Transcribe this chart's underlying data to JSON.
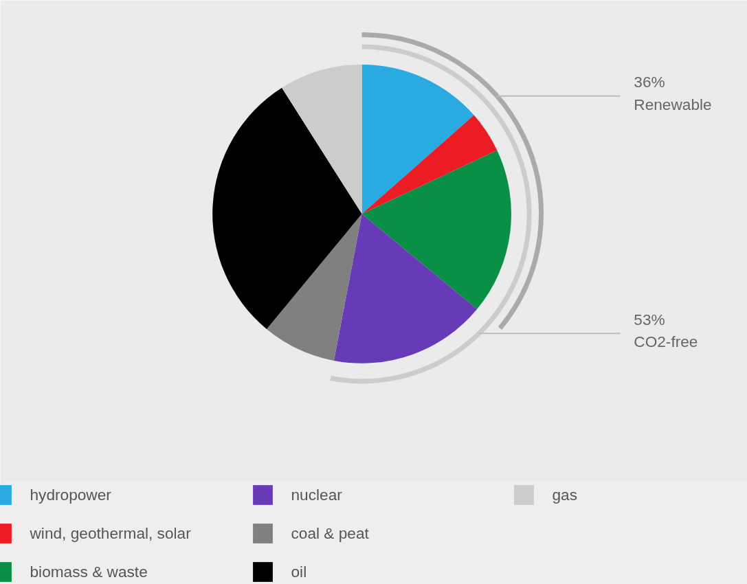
{
  "chart_data": {
    "type": "pie",
    "categories": [
      "hydropower",
      "wind, geothermal, solar",
      "biomass & waste",
      "nuclear",
      "coal & peat",
      "oil",
      "gas"
    ],
    "values": [
      13.5,
      4.5,
      18,
      17,
      8,
      30,
      9
    ],
    "colors": [
      "#29abe2",
      "#ed1c24",
      "#0a8f47",
      "#673ab7",
      "#808080",
      "#000000",
      "#cccccc"
    ],
    "annotations": [
      {
        "text": "36%\nRenewable",
        "x": "biomass & waste"
      },
      {
        "text": "53%\nCO2-free",
        "x": "nuclear"
      }
    ],
    "legend": "bottom"
  }
}
